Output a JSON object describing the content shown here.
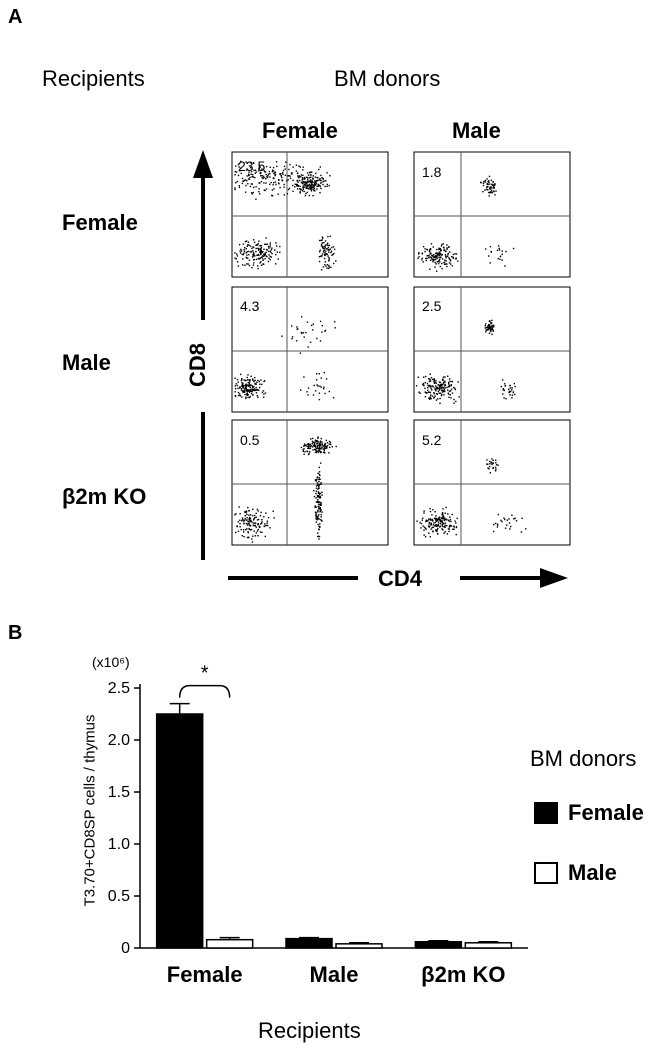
{
  "panel_a": {
    "letter": "A",
    "recipients_header": "Recipients",
    "donors_header": "BM donors",
    "columns": [
      "Female",
      "Male"
    ],
    "rows": [
      "Female",
      "Male",
      "β2m KO"
    ],
    "y_axis_label": "CD8",
    "x_axis_label": "CD4",
    "plots": [
      {
        "row": "Female",
        "donor": "Female",
        "percent": "23.5"
      },
      {
        "row": "Female",
        "donor": "Male",
        "percent": "1.8"
      },
      {
        "row": "Male",
        "donor": "Female",
        "percent": "4.3"
      },
      {
        "row": "Male",
        "donor": "Male",
        "percent": "2.5"
      },
      {
        "row": "β2m KO",
        "donor": "Female",
        "percent": "0.5"
      },
      {
        "row": "β2m KO",
        "donor": "Male",
        "percent": "5.2"
      }
    ]
  },
  "panel_b": {
    "letter": "B",
    "unit_note": "(x10⁶)",
    "significance": "*",
    "legend_title": "BM donors",
    "legend_items": [
      {
        "label": "Female",
        "fill": "#000000"
      },
      {
        "label": "Male",
        "fill": "#ffffff"
      }
    ]
  },
  "chart_data": {
    "type": "bar",
    "title": "",
    "xlabel": "Recipients",
    "ylabel": "T3.70+CD8SP cells / thymus",
    "categories": [
      "Female",
      "Male",
      "β2m KO"
    ],
    "series": [
      {
        "name": "Female",
        "values": [
          2.25,
          0.09,
          0.06
        ],
        "errors": [
          0.1,
          0.01,
          0.01
        ],
        "color": "#000000"
      },
      {
        "name": "Male",
        "values": [
          0.08,
          0.04,
          0.05
        ],
        "errors": [
          0.02,
          0.01,
          0.01
        ],
        "color": "#ffffff"
      }
    ],
    "ylim": [
      0,
      2.5
    ],
    "yticks": [
      "0",
      "0.5",
      "1.0",
      "1.5",
      "2.0",
      "2.5"
    ],
    "legend_position": "right"
  }
}
